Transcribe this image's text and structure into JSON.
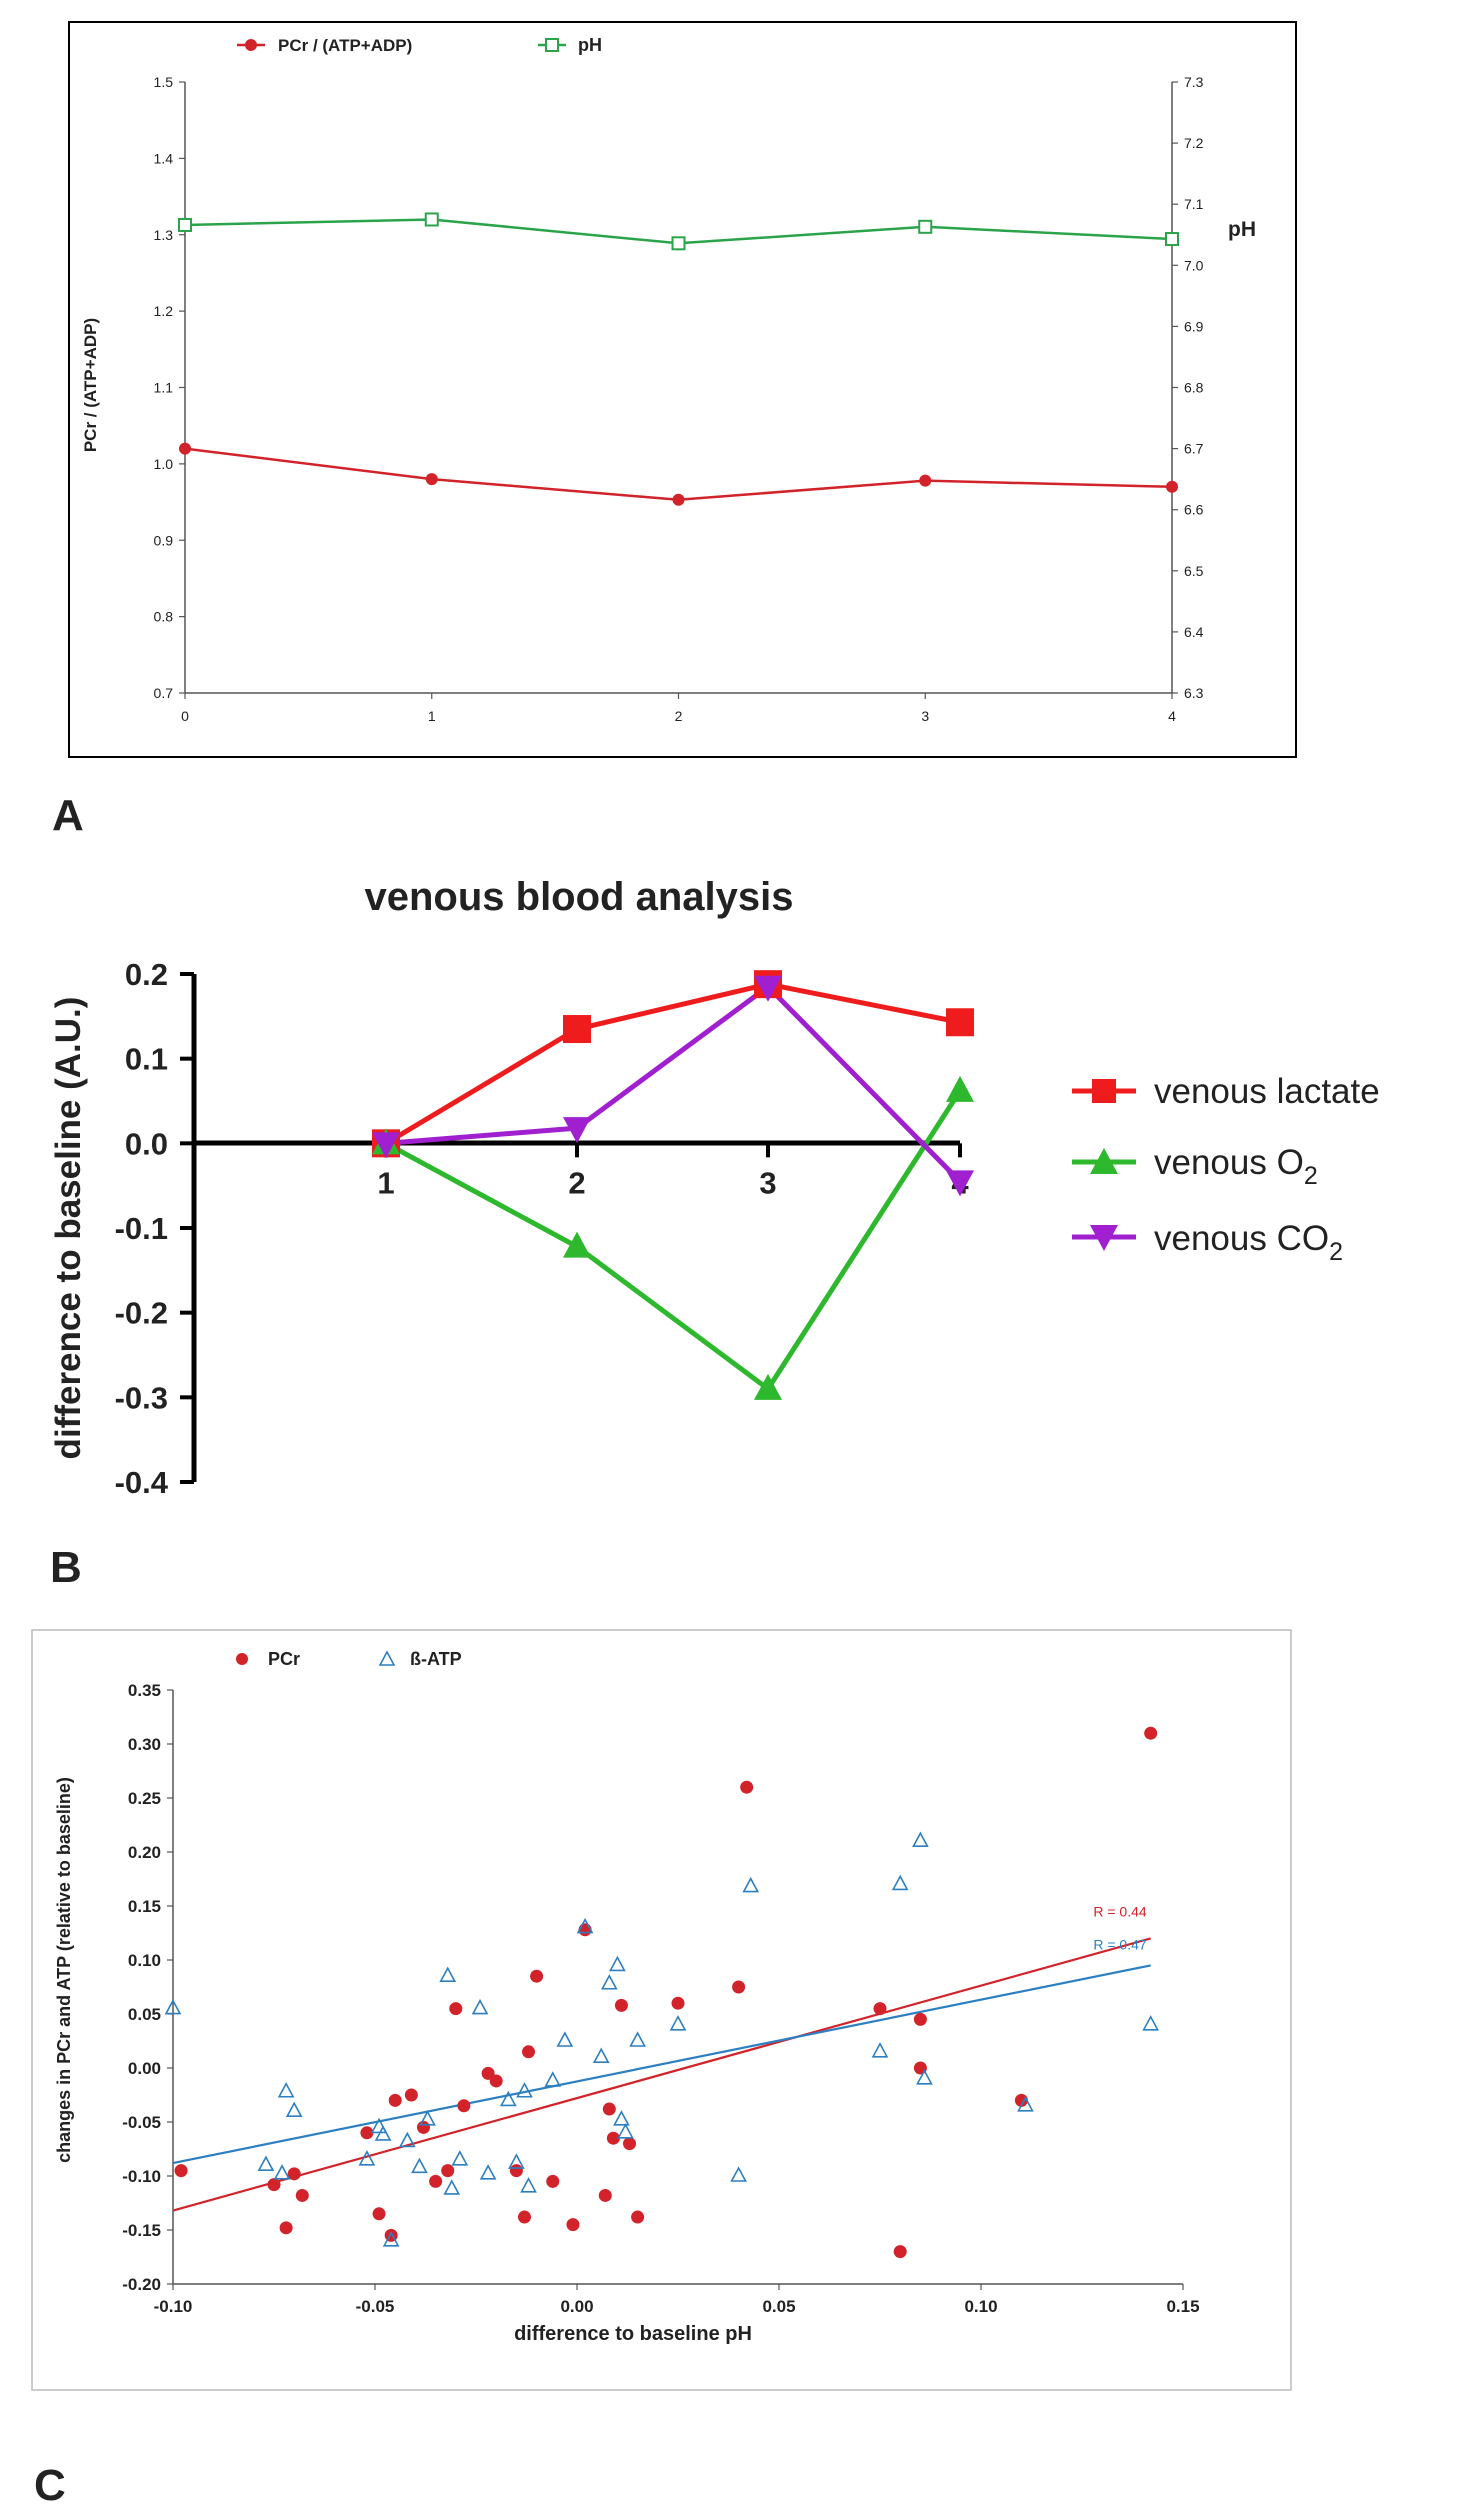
{
  "colors": {
    "pcr": "#d2232a",
    "ph": "#2aa34a",
    "lactate": "#ee1c1c",
    "o2": "#2db82d",
    "co2": "#a020d0",
    "atp": "#2c7fc0",
    "axis": "#000000"
  },
  "panel_labels": {
    "a": "A",
    "b": "B",
    "c": "C"
  },
  "chart_data": [
    {
      "id": "A",
      "type": "line",
      "x": [
        0,
        1,
        2,
        3,
        4
      ],
      "series": [
        {
          "name": "PCr / (ATP+ADP)",
          "axis": "left",
          "marker": "filled-circle",
          "values": [
            1.02,
            0.98,
            0.953,
            0.978,
            0.97
          ]
        },
        {
          "name": "pH",
          "axis": "right",
          "marker": "open-square",
          "values": [
            7.066,
            7.075,
            7.036,
            7.063,
            7.043
          ]
        }
      ],
      "ylabel": "PCr / (ATP+ADP)",
      "y2label": "pH",
      "ylim": [
        0.7,
        1.5
      ],
      "y2lim": [
        6.3,
        7.3
      ],
      "yticks": [
        "0.7",
        "0.8",
        "0.9",
        "1.0",
        "1.1",
        "1.2",
        "1.3",
        "1.4",
        "1.5"
      ],
      "y2ticks": [
        "6.3",
        "6.4",
        "6.5",
        "6.6",
        "6.7",
        "6.8",
        "6.9",
        "7.0",
        "7.1",
        "7.2",
        "7.3"
      ],
      "xticks": [
        "0",
        "1",
        "2",
        "3",
        "4"
      ],
      "legend_position": "top-left"
    },
    {
      "id": "B",
      "type": "line",
      "title": "venous blood analysis",
      "x": [
        1,
        2,
        3,
        4
      ],
      "series": [
        {
          "name": "venous lactate",
          "marker": "square",
          "values": [
            0.0,
            0.135,
            0.188,
            0.143
          ]
        },
        {
          "name": "venous O",
          "sub": "2",
          "marker": "triangle-up",
          "values": [
            0.0,
            -0.122,
            -0.29,
            0.062
          ]
        },
        {
          "name": "venous CO",
          "sub": "2",
          "marker": "triangle-down",
          "values": [
            0.0,
            0.018,
            0.185,
            -0.045
          ]
        }
      ],
      "ylabel": "difference to baseline (A.U.)",
      "ylim": [
        -0.4,
        0.2
      ],
      "yticks": [
        "-0.4",
        "-0.3",
        "-0.2",
        "-0.1",
        "0.0",
        "0.1",
        "0.2"
      ],
      "xticks": [
        "1",
        "2",
        "3",
        "4"
      ],
      "legend_position": "right"
    },
    {
      "id": "C",
      "type": "scatter",
      "xlabel": "difference to baseline pH",
      "ylabel": "changes in PCr and ATP  (relative to baseline)",
      "xlim": [
        -0.1,
        0.15
      ],
      "ylim": [
        -0.2,
        0.35
      ],
      "xticks": [
        "-0.10",
        "-0.05",
        "0.00",
        "0.05",
        "0.10",
        "0.15"
      ],
      "yticks": [
        "-0.20",
        "-0.15",
        "-0.10",
        "-0.05",
        "0.00",
        "0.05",
        "0.10",
        "0.15",
        "0.20",
        "0.25",
        "0.30",
        "0.35"
      ],
      "legend_position": "top-left",
      "series": [
        {
          "name": "PCr",
          "marker": "filled-circle",
          "points": [
            [
              -0.098,
              -0.095
            ],
            [
              -0.075,
              -0.108
            ],
            [
              -0.072,
              -0.148
            ],
            [
              -0.07,
              -0.098
            ],
            [
              -0.068,
              -0.118
            ],
            [
              -0.052,
              -0.06
            ],
            [
              -0.049,
              -0.135
            ],
            [
              -0.046,
              -0.155
            ],
            [
              -0.045,
              -0.03
            ],
            [
              -0.041,
              -0.025
            ],
            [
              -0.038,
              -0.055
            ],
            [
              -0.035,
              -0.105
            ],
            [
              -0.032,
              -0.095
            ],
            [
              -0.03,
              0.055
            ],
            [
              -0.028,
              -0.035
            ],
            [
              -0.022,
              -0.005
            ],
            [
              -0.02,
              -0.012
            ],
            [
              -0.015,
              -0.095
            ],
            [
              -0.013,
              -0.138
            ],
            [
              -0.012,
              0.015
            ],
            [
              -0.01,
              0.085
            ],
            [
              -0.006,
              -0.105
            ],
            [
              -0.001,
              -0.145
            ],
            [
              0.002,
              0.128
            ],
            [
              0.007,
              -0.118
            ],
            [
              0.008,
              -0.038
            ],
            [
              0.009,
              -0.065
            ],
            [
              0.011,
              0.058
            ],
            [
              0.013,
              -0.07
            ],
            [
              0.015,
              -0.138
            ],
            [
              0.025,
              0.06
            ],
            [
              0.04,
              0.075
            ],
            [
              0.042,
              0.26
            ],
            [
              0.075,
              0.055
            ],
            [
              0.08,
              -0.17
            ],
            [
              0.085,
              0.045
            ],
            [
              0.085,
              0.0
            ],
            [
              0.11,
              -0.03
            ],
            [
              0.142,
              0.31
            ]
          ]
        },
        {
          "name": "ß-ATP",
          "marker": "open-triangle",
          "points": [
            [
              -0.1,
              0.055
            ],
            [
              -0.077,
              -0.09
            ],
            [
              -0.073,
              -0.098
            ],
            [
              -0.072,
              -0.022
            ],
            [
              -0.07,
              -0.04
            ],
            [
              -0.052,
              -0.085
            ],
            [
              -0.049,
              -0.055
            ],
            [
              -0.048,
              -0.062
            ],
            [
              -0.046,
              -0.16
            ],
            [
              -0.042,
              -0.068
            ],
            [
              -0.039,
              -0.092
            ],
            [
              -0.037,
              -0.048
            ],
            [
              -0.032,
              0.085
            ],
            [
              -0.031,
              -0.112
            ],
            [
              -0.029,
              -0.085
            ],
            [
              -0.024,
              0.055
            ],
            [
              -0.022,
              -0.098
            ],
            [
              -0.017,
              -0.03
            ],
            [
              -0.015,
              -0.088
            ],
            [
              -0.013,
              -0.022
            ],
            [
              -0.012,
              -0.11
            ],
            [
              -0.006,
              -0.012
            ],
            [
              -0.003,
              0.025
            ],
            [
              0.002,
              0.13
            ],
            [
              0.006,
              0.01
            ],
            [
              0.008,
              0.078
            ],
            [
              0.01,
              0.095
            ],
            [
              0.011,
              -0.048
            ],
            [
              0.012,
              -0.06
            ],
            [
              0.015,
              0.025
            ],
            [
              0.025,
              0.04
            ],
            [
              0.04,
              -0.1
            ],
            [
              0.043,
              0.168
            ],
            [
              0.075,
              0.015
            ],
            [
              0.08,
              0.17
            ],
            [
              0.085,
              0.21
            ],
            [
              0.086,
              -0.01
            ],
            [
              0.111,
              -0.035
            ],
            [
              0.142,
              0.04
            ]
          ]
        }
      ],
      "fits": [
        {
          "name": "PCr fit",
          "label": "R = 0.44",
          "x": [
            -0.1,
            0.142
          ],
          "y": [
            -0.132,
            0.12
          ]
        },
        {
          "name": "ß-ATP fit",
          "label": "R = 0.47",
          "x": [
            -0.1,
            0.142
          ],
          "y": [
            -0.088,
            0.095
          ]
        }
      ]
    }
  ]
}
